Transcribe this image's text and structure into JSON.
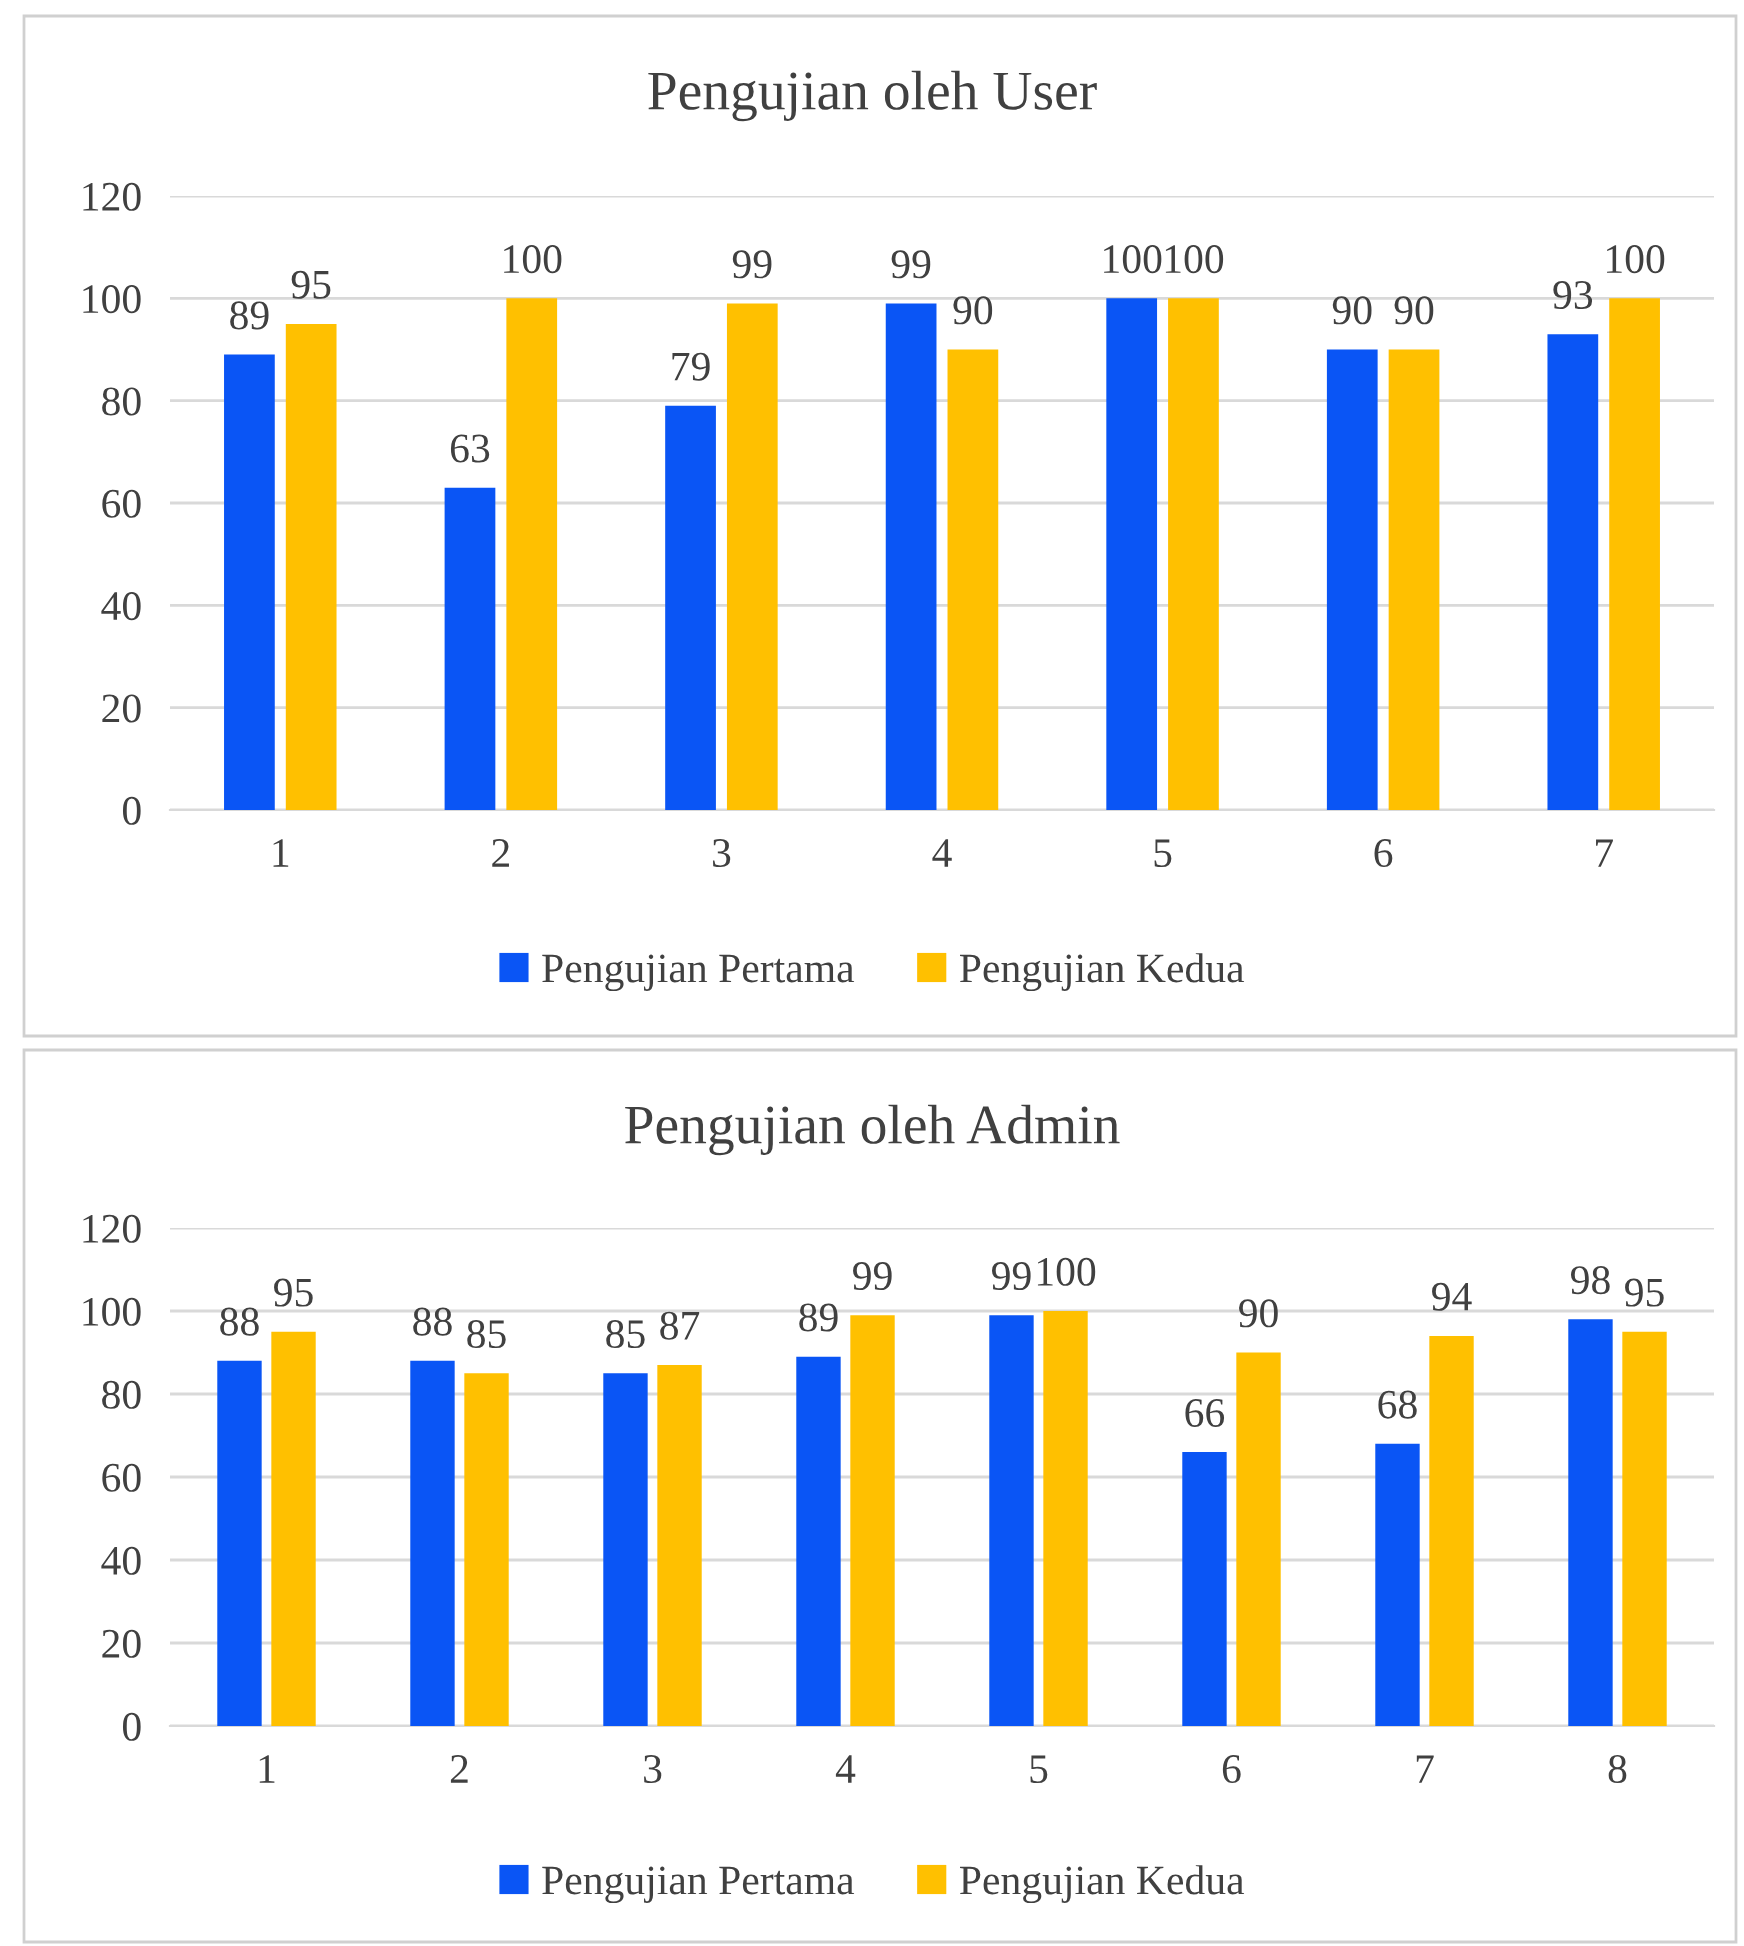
{
  "chart_data": [
    {
      "type": "bar",
      "title": "Pengujian oleh User",
      "categories": [
        "1",
        "2",
        "3",
        "4",
        "5",
        "6",
        "7"
      ],
      "series": [
        {
          "name": "Pengujian Pertama",
          "color": "#0a55f5",
          "values": [
            89,
            63,
            79,
            99,
            100,
            90,
            93
          ]
        },
        {
          "name": "Pengujian Kedua",
          "color": "#ffc000",
          "values": [
            95,
            100,
            99,
            90,
            100,
            90,
            100
          ]
        }
      ],
      "ylim": [
        0,
        120
      ],
      "yticks": [
        0,
        20,
        40,
        60,
        80,
        100,
        120
      ],
      "grid": "y",
      "legend": "bottom",
      "data_labels": true
    },
    {
      "type": "bar",
      "title": "Pengujian oleh Admin",
      "categories": [
        "1",
        "2",
        "3",
        "4",
        "5",
        "6",
        "7",
        "8"
      ],
      "series": [
        {
          "name": "Pengujian Pertama",
          "color": "#0a55f5",
          "values": [
            88,
            88,
            85,
            89,
            99,
            66,
            68,
            98
          ]
        },
        {
          "name": "Pengujian Kedua",
          "color": "#ffc000",
          "values": [
            95,
            85,
            87,
            99,
            100,
            90,
            94,
            95
          ]
        }
      ],
      "ylim": [
        0,
        120
      ],
      "yticks": [
        0,
        20,
        40,
        60,
        80,
        100,
        120
      ],
      "grid": "y",
      "legend": "bottom",
      "data_labels": true
    }
  ]
}
